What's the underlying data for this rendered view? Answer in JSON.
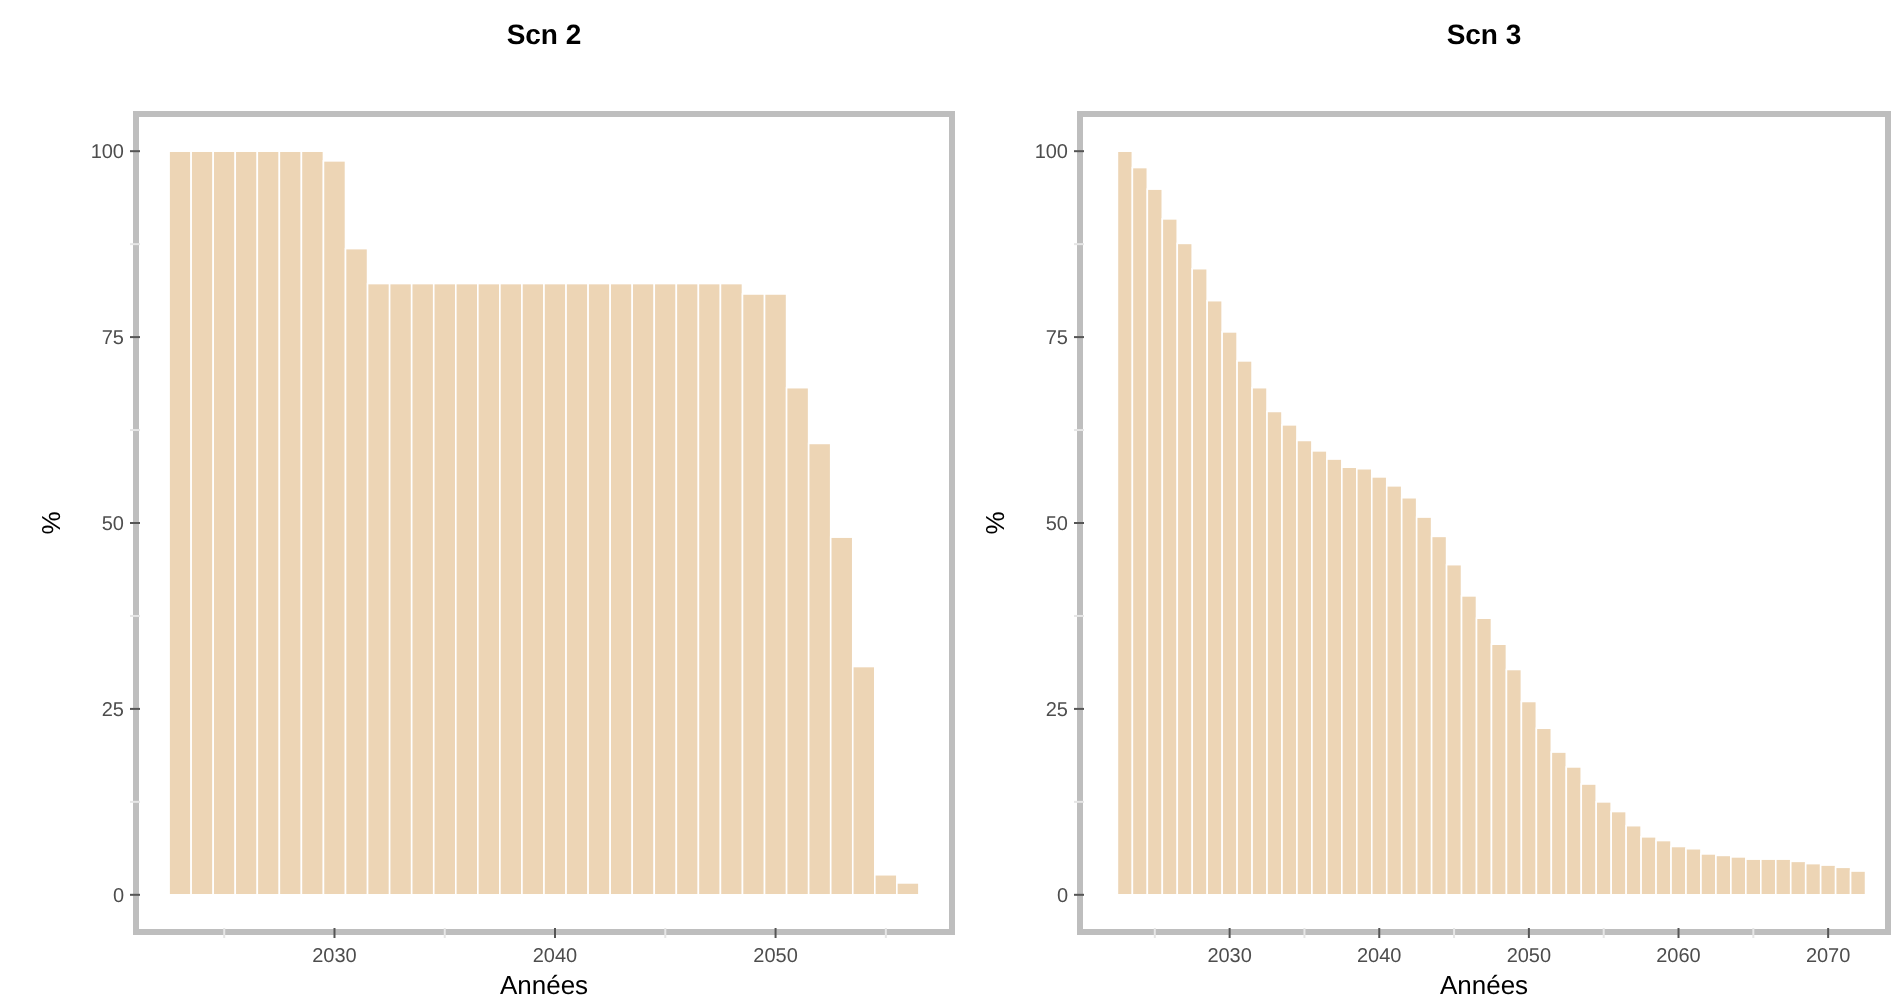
{
  "chart_data": [
    {
      "type": "bar",
      "title": "Scn 2",
      "xlabel": "Années",
      "ylabel": "%",
      "color": "#edd5b5",
      "x": [
        2023,
        2024,
        2025,
        2026,
        2027,
        2028,
        2029,
        2030,
        2031,
        2032,
        2033,
        2034,
        2035,
        2036,
        2037,
        2038,
        2039,
        2040,
        2041,
        2042,
        2043,
        2044,
        2045,
        2046,
        2047,
        2048,
        2049,
        2050,
        2051,
        2052,
        2053,
        2054,
        2055,
        2056
      ],
      "values": [
        100,
        100,
        100,
        100,
        100,
        100,
        100,
        98.7,
        86.9,
        82.2,
        82.2,
        82.2,
        82.2,
        82.2,
        82.2,
        82.2,
        82.2,
        82.2,
        82.2,
        82.2,
        82.2,
        82.2,
        82.2,
        82.2,
        82.2,
        82.2,
        80.8,
        80.8,
        68.2,
        60.7,
        48.1,
        30.7,
        2.7,
        1.6
      ],
      "xlim": [
        2021,
        2058
      ],
      "xticks": [
        {
          "value": 2025,
          "label": null
        },
        2030,
        {
          "value": 2035,
          "label": null
        },
        2040,
        {
          "value": 2045,
          "label": null
        },
        2050,
        {
          "value": 2055,
          "label": null
        }
      ],
      "ylim": [
        -5,
        105
      ],
      "yticks": [
        0,
        {
          "value": 12.5,
          "label": null
        },
        25,
        {
          "value": 37.5,
          "label": null
        },
        50,
        {
          "value": 62.5,
          "label": null
        },
        75,
        {
          "value": 87.5,
          "label": null
        },
        100
      ]
    },
    {
      "type": "bar",
      "title": "Scn 3",
      "xlabel": "Années",
      "ylabel": "%",
      "color": "#edd5b5",
      "x": [
        2023,
        2024,
        2025,
        2026,
        2027,
        2028,
        2029,
        2030,
        2031,
        2032,
        2033,
        2034,
        2035,
        2036,
        2037,
        2038,
        2039,
        2040,
        2041,
        2042,
        2043,
        2044,
        2045,
        2046,
        2047,
        2048,
        2049,
        2050,
        2051,
        2052,
        2053,
        2054,
        2055,
        2056,
        2057,
        2058,
        2059,
        2060,
        2061,
        2062,
        2063,
        2064,
        2065,
        2066,
        2067,
        2068,
        2069,
        2070,
        2071,
        2072
      ],
      "values": [
        100,
        97.8,
        94.9,
        90.9,
        87.6,
        84.2,
        79.9,
        75.7,
        71.8,
        68.2,
        65.0,
        63.2,
        61.1,
        59.7,
        58.6,
        57.5,
        57.3,
        56.2,
        55.0,
        53.4,
        50.8,
        48.2,
        44.4,
        40.2,
        37.2,
        33.7,
        30.3,
        26.0,
        22.4,
        19.2,
        17.2,
        14.9,
        12.5,
        11.2,
        9.3,
        7.8,
        7.3,
        6.5,
        6.2,
        5.5,
        5.3,
        5.1,
        4.8,
        4.8,
        4.8,
        4.5,
        4.2,
        4.0,
        3.7,
        3.2
      ],
      "xlim": [
        2020,
        2074
      ],
      "xticks": [
        {
          "value": 2025,
          "label": null
        },
        2030,
        {
          "value": 2035,
          "label": null
        },
        2040,
        {
          "value": 2045,
          "label": null
        },
        2050,
        {
          "value": 2055,
          "label": null
        },
        2060,
        {
          "value": 2065,
          "label": null
        },
        2070
      ],
      "ylim": [
        -5,
        105
      ],
      "yticks": [
        0,
        {
          "value": 12.5,
          "label": null
        },
        25,
        {
          "value": 37.5,
          "label": null
        },
        50,
        {
          "value": 62.5,
          "label": null
        },
        75,
        {
          "value": 87.5,
          "label": null
        },
        100
      ]
    }
  ]
}
